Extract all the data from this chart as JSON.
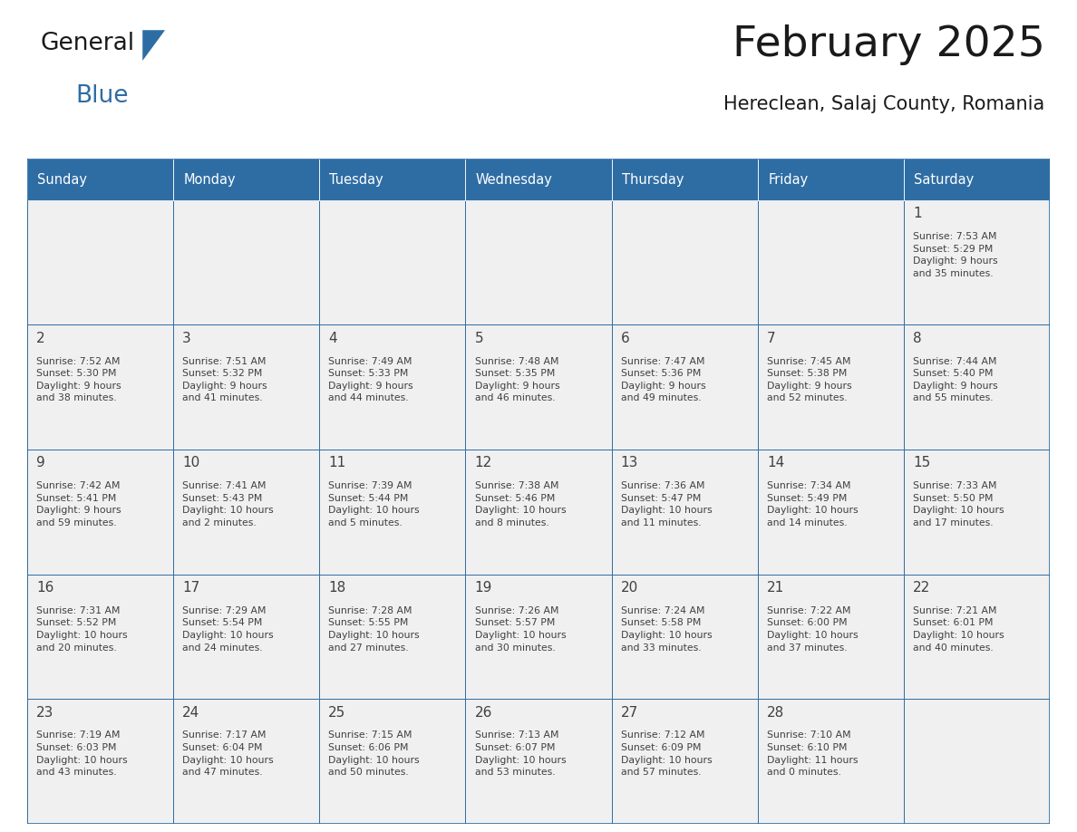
{
  "title": "February 2025",
  "subtitle": "Hereclean, Salaj County, Romania",
  "header_bg": "#2E6DA4",
  "header_text": "#FFFFFF",
  "cell_bg_light": "#F0F0F0",
  "border_color": "#2E6DA4",
  "text_color": "#404040",
  "days_of_week": [
    "Sunday",
    "Monday",
    "Tuesday",
    "Wednesday",
    "Thursday",
    "Friday",
    "Saturday"
  ],
  "calendar_data": [
    [
      {
        "day": "",
        "info": ""
      },
      {
        "day": "",
        "info": ""
      },
      {
        "day": "",
        "info": ""
      },
      {
        "day": "",
        "info": ""
      },
      {
        "day": "",
        "info": ""
      },
      {
        "day": "",
        "info": ""
      },
      {
        "day": "1",
        "info": "Sunrise: 7:53 AM\nSunset: 5:29 PM\nDaylight: 9 hours\nand 35 minutes."
      }
    ],
    [
      {
        "day": "2",
        "info": "Sunrise: 7:52 AM\nSunset: 5:30 PM\nDaylight: 9 hours\nand 38 minutes."
      },
      {
        "day": "3",
        "info": "Sunrise: 7:51 AM\nSunset: 5:32 PM\nDaylight: 9 hours\nand 41 minutes."
      },
      {
        "day": "4",
        "info": "Sunrise: 7:49 AM\nSunset: 5:33 PM\nDaylight: 9 hours\nand 44 minutes."
      },
      {
        "day": "5",
        "info": "Sunrise: 7:48 AM\nSunset: 5:35 PM\nDaylight: 9 hours\nand 46 minutes."
      },
      {
        "day": "6",
        "info": "Sunrise: 7:47 AM\nSunset: 5:36 PM\nDaylight: 9 hours\nand 49 minutes."
      },
      {
        "day": "7",
        "info": "Sunrise: 7:45 AM\nSunset: 5:38 PM\nDaylight: 9 hours\nand 52 minutes."
      },
      {
        "day": "8",
        "info": "Sunrise: 7:44 AM\nSunset: 5:40 PM\nDaylight: 9 hours\nand 55 minutes."
      }
    ],
    [
      {
        "day": "9",
        "info": "Sunrise: 7:42 AM\nSunset: 5:41 PM\nDaylight: 9 hours\nand 59 minutes."
      },
      {
        "day": "10",
        "info": "Sunrise: 7:41 AM\nSunset: 5:43 PM\nDaylight: 10 hours\nand 2 minutes."
      },
      {
        "day": "11",
        "info": "Sunrise: 7:39 AM\nSunset: 5:44 PM\nDaylight: 10 hours\nand 5 minutes."
      },
      {
        "day": "12",
        "info": "Sunrise: 7:38 AM\nSunset: 5:46 PM\nDaylight: 10 hours\nand 8 minutes."
      },
      {
        "day": "13",
        "info": "Sunrise: 7:36 AM\nSunset: 5:47 PM\nDaylight: 10 hours\nand 11 minutes."
      },
      {
        "day": "14",
        "info": "Sunrise: 7:34 AM\nSunset: 5:49 PM\nDaylight: 10 hours\nand 14 minutes."
      },
      {
        "day": "15",
        "info": "Sunrise: 7:33 AM\nSunset: 5:50 PM\nDaylight: 10 hours\nand 17 minutes."
      }
    ],
    [
      {
        "day": "16",
        "info": "Sunrise: 7:31 AM\nSunset: 5:52 PM\nDaylight: 10 hours\nand 20 minutes."
      },
      {
        "day": "17",
        "info": "Sunrise: 7:29 AM\nSunset: 5:54 PM\nDaylight: 10 hours\nand 24 minutes."
      },
      {
        "day": "18",
        "info": "Sunrise: 7:28 AM\nSunset: 5:55 PM\nDaylight: 10 hours\nand 27 minutes."
      },
      {
        "day": "19",
        "info": "Sunrise: 7:26 AM\nSunset: 5:57 PM\nDaylight: 10 hours\nand 30 minutes."
      },
      {
        "day": "20",
        "info": "Sunrise: 7:24 AM\nSunset: 5:58 PM\nDaylight: 10 hours\nand 33 minutes."
      },
      {
        "day": "21",
        "info": "Sunrise: 7:22 AM\nSunset: 6:00 PM\nDaylight: 10 hours\nand 37 minutes."
      },
      {
        "day": "22",
        "info": "Sunrise: 7:21 AM\nSunset: 6:01 PM\nDaylight: 10 hours\nand 40 minutes."
      }
    ],
    [
      {
        "day": "23",
        "info": "Sunrise: 7:19 AM\nSunset: 6:03 PM\nDaylight: 10 hours\nand 43 minutes."
      },
      {
        "day": "24",
        "info": "Sunrise: 7:17 AM\nSunset: 6:04 PM\nDaylight: 10 hours\nand 47 minutes."
      },
      {
        "day": "25",
        "info": "Sunrise: 7:15 AM\nSunset: 6:06 PM\nDaylight: 10 hours\nand 50 minutes."
      },
      {
        "day": "26",
        "info": "Sunrise: 7:13 AM\nSunset: 6:07 PM\nDaylight: 10 hours\nand 53 minutes."
      },
      {
        "day": "27",
        "info": "Sunrise: 7:12 AM\nSunset: 6:09 PM\nDaylight: 10 hours\nand 57 minutes."
      },
      {
        "day": "28",
        "info": "Sunrise: 7:10 AM\nSunset: 6:10 PM\nDaylight: 11 hours\nand 0 minutes."
      },
      {
        "day": "",
        "info": ""
      }
    ]
  ],
  "logo_color_general": "#1a1a1a",
  "logo_color_blue": "#2E6DA4",
  "logo_triangle_color": "#2E6DA4",
  "fig_width": 11.88,
  "fig_height": 9.18,
  "dpi": 100
}
